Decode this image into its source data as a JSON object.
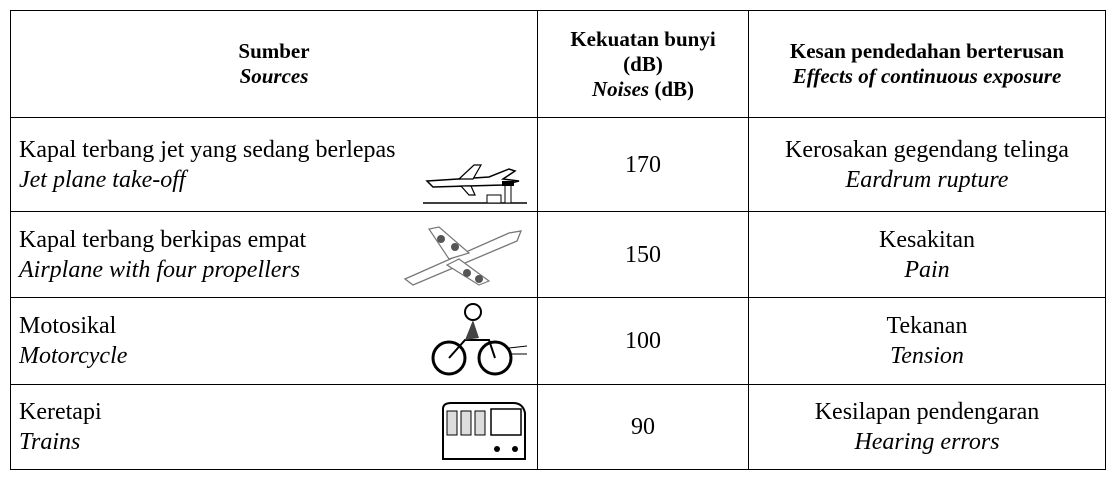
{
  "table": {
    "header": [
      {
        "malay": "Sumber",
        "english": "Sources"
      },
      {
        "malay": [
          "Kekuatan bunyi",
          "(dB)"
        ],
        "english": "Noises",
        "unit": "(dB)"
      },
      {
        "malay": "Kesan pendedahan berterusan",
        "english": "Effects of continuous exposure"
      }
    ],
    "rows": [
      {
        "source_malay": "Kapal terbang jet yang sedang berlepas",
        "source_english": "Jet plane take-off",
        "noise": "170",
        "effect_malay": "Kerosakan gegendang telinga",
        "effect_english": "Eardrum rupture"
      },
      {
        "source_malay": "Kapal terbang berkipas empat",
        "source_english": "Airplane with four propellers",
        "noise": "150",
        "effect_malay": "Kesakitan",
        "effect_english": "Pain"
      },
      {
        "source_malay": "Motosikal",
        "source_english": "Motorcycle",
        "noise": "100",
        "effect_malay": "Tekanan",
        "effect_english": "Tension"
      },
      {
        "source_malay": "Keretapi",
        "source_english": "Trains",
        "noise": "90",
        "effect_malay": "Kesilapan pendengaran",
        "effect_english": "Hearing errors"
      }
    ]
  }
}
